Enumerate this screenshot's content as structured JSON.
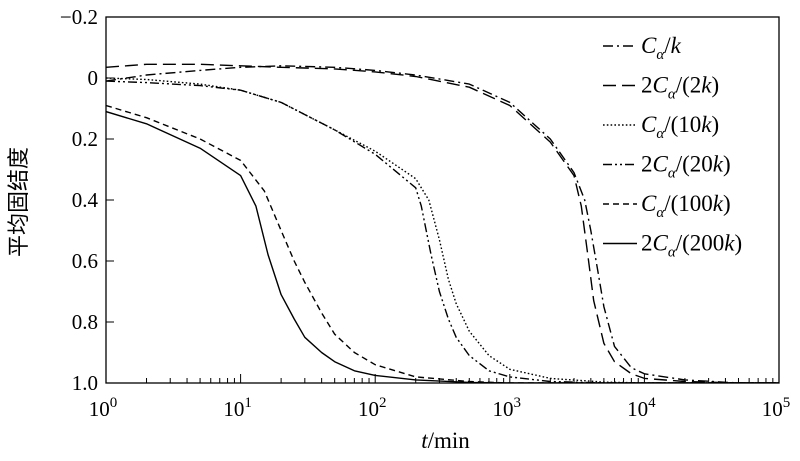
{
  "chart_data": {
    "type": "line",
    "title": "",
    "xlabel": "t/min",
    "xlabel_parts": {
      "var": "t",
      "unit": "/min"
    },
    "ylabel": "平均固结度",
    "xscale": "log",
    "xlim": [
      1,
      100000
    ],
    "ylim": [
      -0.2,
      1.0
    ],
    "y_inverted": true,
    "grid": false,
    "legend_position": "top-right",
    "x_ticks": [
      {
        "base": "10",
        "exp": "0"
      },
      {
        "base": "10",
        "exp": "1"
      },
      {
        "base": "10",
        "exp": "2"
      },
      {
        "base": "10",
        "exp": "3"
      },
      {
        "base": "10",
        "exp": "4"
      },
      {
        "base": "10",
        "exp": "5"
      }
    ],
    "y_ticks": [
      "−0.2",
      "0",
      "0.2",
      "0.4",
      "0.6",
      "0.8",
      "1.0"
    ],
    "series": [
      {
        "name": "Cα/k",
        "label_parts": {
          "coef": "",
          "k": "k",
          "paren": false
        },
        "dash": "dashdot",
        "x": [
          1,
          2,
          5,
          10,
          20,
          50,
          100,
          200,
          500,
          1000,
          2000,
          3000,
          3600,
          4000,
          4500,
          5000,
          6000,
          8000,
          10000,
          20000,
          50000,
          100000
        ],
        "y": [
          0.01,
          -0.01,
          -0.025,
          -0.035,
          -0.04,
          -0.035,
          -0.025,
          -0.01,
          0.02,
          0.08,
          0.2,
          0.31,
          0.4,
          0.5,
          0.63,
          0.75,
          0.88,
          0.95,
          0.97,
          0.99,
          1.0,
          1.0
        ]
      },
      {
        "name": "2Cα/(2k)",
        "label_parts": {
          "coef": "2",
          "k": "2k",
          "paren": true
        },
        "dash": "longdash",
        "x": [
          1,
          2,
          5,
          10,
          20,
          50,
          100,
          200,
          500,
          1000,
          2000,
          3000,
          3400,
          3800,
          4200,
          5000,
          6000,
          8000,
          10000,
          20000,
          50000,
          100000
        ],
        "y": [
          -0.035,
          -0.045,
          -0.045,
          -0.04,
          -0.035,
          -0.03,
          -0.02,
          -0.005,
          0.03,
          0.09,
          0.21,
          0.32,
          0.42,
          0.58,
          0.73,
          0.87,
          0.93,
          0.97,
          0.985,
          0.995,
          1.0,
          1.0
        ]
      },
      {
        "name": "Cα/(10k)",
        "label_parts": {
          "coef": "",
          "k": "10k",
          "paren": true
        },
        "dash": "dotted",
        "x": [
          1,
          2,
          5,
          10,
          20,
          50,
          100,
          200,
          250,
          300,
          350,
          400,
          500,
          700,
          1000,
          2000,
          5000,
          10000,
          100000
        ],
        "y": [
          0.0,
          0.005,
          0.02,
          0.04,
          0.08,
          0.17,
          0.24,
          0.33,
          0.4,
          0.53,
          0.66,
          0.74,
          0.83,
          0.91,
          0.955,
          0.985,
          0.997,
          1.0,
          1.0
        ]
      },
      {
        "name": "2Cα/(20k)",
        "label_parts": {
          "coef": "2",
          "k": "20k",
          "paren": true
        },
        "dash": "dashdotdot",
        "x": [
          1,
          2,
          5,
          10,
          20,
          50,
          100,
          200,
          220,
          260,
          300,
          350,
          400,
          500,
          700,
          1000,
          2000,
          5000,
          10000,
          100000
        ],
        "y": [
          0.01,
          0.015,
          0.025,
          0.04,
          0.08,
          0.17,
          0.25,
          0.36,
          0.42,
          0.58,
          0.7,
          0.79,
          0.85,
          0.91,
          0.96,
          0.98,
          0.995,
          1.0,
          1.0,
          1.0
        ]
      },
      {
        "name": "Cα/(100k)",
        "label_parts": {
          "coef": "",
          "k": "100k",
          "paren": true
        },
        "dash": "shortdash",
        "x": [
          1,
          2,
          5,
          10,
          15,
          20,
          25,
          30,
          40,
          50,
          70,
          100,
          200,
          500,
          1000,
          5000,
          100000
        ],
        "y": [
          0.09,
          0.13,
          0.2,
          0.27,
          0.37,
          0.5,
          0.6,
          0.67,
          0.77,
          0.84,
          0.9,
          0.94,
          0.98,
          0.995,
          1.0,
          1.0,
          1.0
        ]
      },
      {
        "name": "2Cα/(200k)",
        "label_parts": {
          "coef": "2",
          "k": "200k",
          "paren": true
        },
        "dash": "solid",
        "x": [
          1,
          2,
          5,
          10,
          13,
          16,
          20,
          25,
          30,
          40,
          50,
          70,
          100,
          200,
          500,
          1000,
          5000,
          100000
        ],
        "y": [
          0.11,
          0.15,
          0.23,
          0.32,
          0.42,
          0.58,
          0.71,
          0.79,
          0.85,
          0.9,
          0.93,
          0.96,
          0.975,
          0.99,
          0.998,
          1.0,
          1.0,
          1.0
        ]
      }
    ]
  }
}
